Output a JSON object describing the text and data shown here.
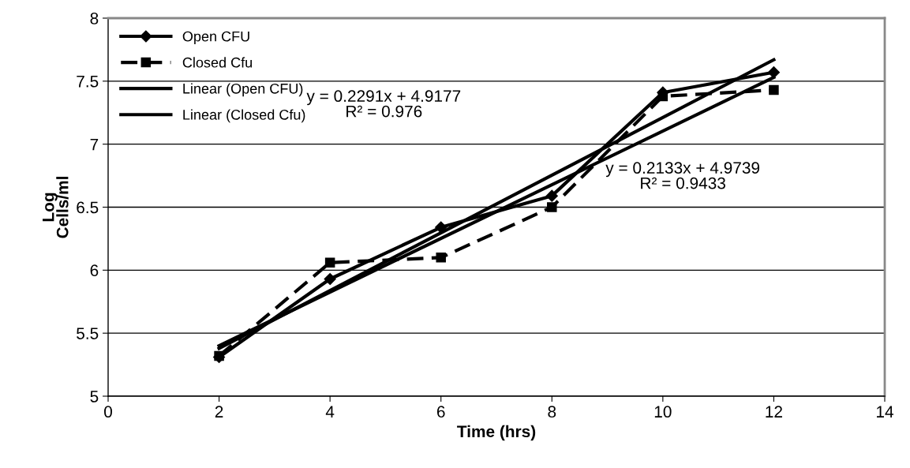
{
  "chart_data": {
    "type": "line",
    "xlabel": "Time (hrs)",
    "ylabel": "Log\nCells/ml",
    "xlim": [
      0,
      14
    ],
    "xticks": [
      0,
      2,
      4,
      6,
      8,
      10,
      12,
      14
    ],
    "ylim": [
      5,
      8
    ],
    "yticks": [
      5,
      5.5,
      6,
      6.5,
      7,
      7.5,
      8
    ],
    "grid": "y",
    "legend": "top left",
    "series": [
      {
        "name": "Open CFU",
        "color": "#000000",
        "x": [
          2,
          4,
          6,
          8,
          10,
          12
        ],
        "values": [
          5.31,
          5.93,
          6.34,
          6.59,
          7.41,
          7.57
        ],
        "marker": "diamond",
        "line_style": "solid"
      },
      {
        "name": "Closed Cfu",
        "color": "#000000",
        "x": [
          2,
          4,
          6,
          8,
          10,
          12
        ],
        "values": [
          5.32,
          6.06,
          6.1,
          6.5,
          7.38,
          7.43
        ],
        "marker": "square",
        "line_style": "dashed"
      },
      {
        "name": "Linear (Open CFU)",
        "color": "#000000",
        "x": [
          2,
          12
        ],
        "values": [
          5.38,
          7.67
        ],
        "marker": "none",
        "line_style": "solid"
      },
      {
        "name": "Linear (Closed Cfu)",
        "color": "#000000",
        "x": [
          2,
          12
        ],
        "values": [
          5.4,
          7.53
        ],
        "marker": "none",
        "line_style": "solid"
      }
    ],
    "annotations": [
      "y = 0.2291x + 4.9177\nR² = 0.976",
      "y = 0.2133x + 4.9739\nR² = 0.9433"
    ]
  }
}
